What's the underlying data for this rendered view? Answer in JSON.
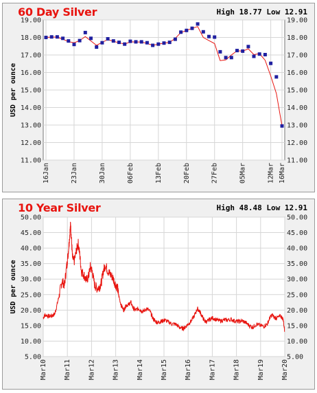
{
  "chart_data": [
    {
      "type": "line",
      "title": "60 Day Silver",
      "high_label": "High",
      "high_value": "18.77",
      "low_label": "Low",
      "low_value": "12.91",
      "ylabel": "USD per ounce",
      "ylim": [
        11,
        19
      ],
      "yticks": [
        "11.00",
        "12.00",
        "13.00",
        "14.00",
        "15.00",
        "16.00",
        "17.00",
        "18.00",
        "19.00"
      ],
      "xticks": [
        "16Jan",
        "23Jan",
        "30Jan",
        "06Feb",
        "13Feb",
        "20Feb",
        "27Feb",
        "05Mar",
        "12Mar",
        "16Mar"
      ],
      "line_color": "#e8140f",
      "marker_color": "#2020a0",
      "series": [
        {
          "values": [
            18.0,
            18.03,
            18.03,
            17.95,
            17.8,
            17.6,
            17.82,
            18.28,
            17.95,
            17.45,
            17.7,
            17.92,
            17.8,
            17.72,
            17.62,
            17.78,
            17.75,
            17.75,
            17.7,
            17.55,
            17.62,
            17.68,
            17.72,
            17.9,
            18.3,
            18.4,
            18.52,
            18.77,
            18.32,
            18.05,
            18.02,
            17.18,
            16.85,
            16.85,
            17.25,
            17.22,
            17.48,
            16.92,
            17.05,
            17.02,
            16.52,
            15.75,
            12.95
          ],
          "line_values": [
            18.0,
            18.02,
            18.02,
            17.9,
            17.76,
            17.7,
            17.82,
            18.05,
            17.8,
            17.55,
            17.72,
            17.88,
            17.78,
            17.7,
            17.62,
            17.75,
            17.74,
            17.74,
            17.66,
            17.55,
            17.62,
            17.68,
            17.72,
            17.95,
            18.28,
            18.4,
            18.52,
            18.62,
            18.0,
            17.82,
            17.65,
            16.68,
            16.72,
            17.0,
            17.24,
            17.22,
            17.35,
            17.02,
            17.08,
            16.7,
            15.8,
            14.8,
            12.95
          ]
        }
      ]
    },
    {
      "type": "line",
      "title": "10 Year Silver",
      "high_label": "High",
      "high_value": "48.48",
      "low_label": "Low",
      "low_value": "12.91",
      "ylabel": "USD per ounce",
      "ylim": [
        5,
        50
      ],
      "yticks": [
        "5.00",
        "10.00",
        "15.00",
        "20.00",
        "25.00",
        "30.00",
        "35.00",
        "40.00",
        "45.00",
        "50.00"
      ],
      "xticks": [
        "Mar10",
        "Mar11",
        "Mar12",
        "Mar13",
        "Mar14",
        "Mar15",
        "Mar16",
        "Mar17",
        "Mar18",
        "Mar19",
        "Mar20"
      ],
      "line_color": "#e8140f",
      "series": [
        {
          "x": [
            2010.17,
            2010.25,
            2010.4,
            2010.55,
            2010.65,
            2010.75,
            2010.85,
            2010.95,
            2011.05,
            2011.13,
            2011.2,
            2011.25,
            2011.3,
            2011.33,
            2011.38,
            2011.45,
            2011.55,
            2011.62,
            2011.68,
            2011.75,
            2011.85,
            2011.95,
            2012.05,
            2012.12,
            2012.2,
            2012.3,
            2012.4,
            2012.5,
            2012.58,
            2012.67,
            2012.75,
            2012.85,
            2012.95,
            2013.05,
            2013.15,
            2013.25,
            2013.3,
            2013.4,
            2013.5,
            2013.6,
            2013.7,
            2013.8,
            2013.9,
            2014.0,
            2014.1,
            2014.2,
            2014.3,
            2014.45,
            2014.6,
            2014.7,
            2014.8,
            2014.9,
            2015.0,
            2015.1,
            2015.2,
            2015.35,
            2015.5,
            2015.65,
            2015.8,
            2015.95,
            2016.05,
            2016.17,
            2016.3,
            2016.45,
            2016.55,
            2016.65,
            2016.75,
            2016.85,
            2016.95,
            2017.05,
            2017.2,
            2017.35,
            2017.5,
            2017.65,
            2017.8,
            2017.95,
            2018.1,
            2018.25,
            2018.4,
            2018.55,
            2018.7,
            2018.85,
            2019.0,
            2019.15,
            2019.3,
            2019.45,
            2019.55,
            2019.65,
            2019.75,
            2019.85,
            2020.0,
            2020.1,
            2020.17
          ],
          "values": [
            17.5,
            18.5,
            18.0,
            18.2,
            18.8,
            22.0,
            25.5,
            29.5,
            28.0,
            33.5,
            38.0,
            42.5,
            47.5,
            44.0,
            37.0,
            35.5,
            39.5,
            41.5,
            38.0,
            32.5,
            31.5,
            29.5,
            31.0,
            34.0,
            32.5,
            28.0,
            27.0,
            27.5,
            29.0,
            33.0,
            34.5,
            32.5,
            31.5,
            30.5,
            28.5,
            27.0,
            24.5,
            21.5,
            20.0,
            21.5,
            21.8,
            22.5,
            20.5,
            20.0,
            20.5,
            20.0,
            19.5,
            20.5,
            19.5,
            17.5,
            16.5,
            16.0,
            16.2,
            16.5,
            16.8,
            16.2,
            15.5,
            15.5,
            14.5,
            14.0,
            14.5,
            15.5,
            16.5,
            18.5,
            20.5,
            19.5,
            18.0,
            16.5,
            16.2,
            17.0,
            17.5,
            16.8,
            16.5,
            16.8,
            16.8,
            17.0,
            16.5,
            16.3,
            16.5,
            16.0,
            15.0,
            14.5,
            15.5,
            15.0,
            14.8,
            15.5,
            17.5,
            18.5,
            17.5,
            17.5,
            18.0,
            17.2,
            13.0
          ]
        }
      ]
    }
  ]
}
